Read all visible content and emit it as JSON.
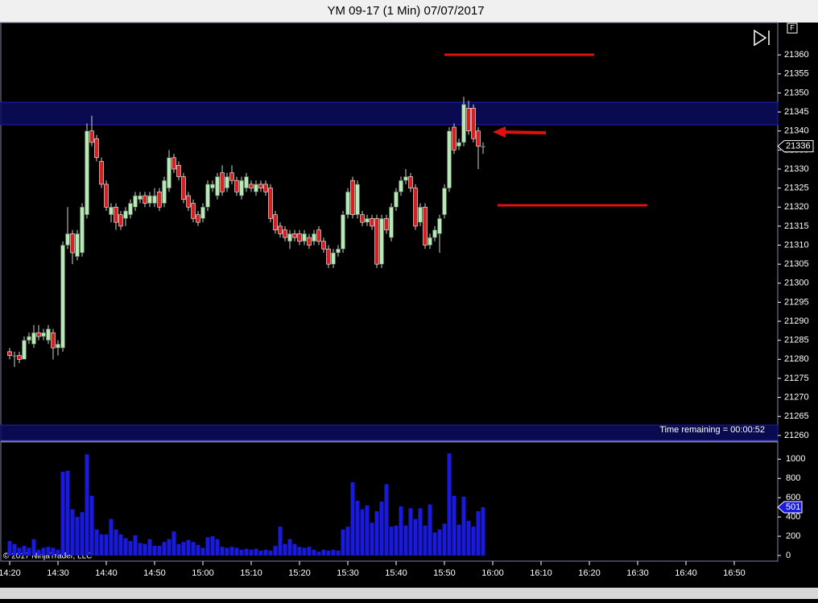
{
  "chart_data": {
    "type": "candlestick",
    "title": "YM 09-17 (1 Min)  07/07/2017",
    "status": "Time remaining = 00:00:52",
    "copyright": "© 2017 NinjaTrader, LLC",
    "flag": "F",
    "x": [
      "14:20",
      "14:21",
      "14:22",
      "14:23",
      "14:24",
      "14:25",
      "14:26",
      "14:27",
      "14:28",
      "14:29",
      "14:30",
      "14:31",
      "14:32",
      "14:33",
      "14:34",
      "14:35",
      "14:36",
      "14:37",
      "14:38",
      "14:39",
      "14:40",
      "14:41",
      "14:42",
      "14:43",
      "14:44",
      "14:45",
      "14:46",
      "14:47",
      "14:48",
      "14:49",
      "14:50",
      "14:51",
      "14:52",
      "14:53",
      "14:54",
      "14:55",
      "14:56",
      "14:57",
      "14:58",
      "14:59",
      "15:00",
      "15:01",
      "15:02",
      "15:03",
      "15:04",
      "15:05",
      "15:06",
      "15:07",
      "15:08",
      "15:09",
      "15:10",
      "15:11",
      "15:12",
      "15:13",
      "15:14",
      "15:15",
      "15:16",
      "15:17",
      "15:18",
      "15:19",
      "15:20",
      "15:21",
      "15:22",
      "15:23",
      "15:24",
      "15:25",
      "15:26",
      "15:27",
      "15:28",
      "15:29",
      "15:30",
      "15:31",
      "15:32",
      "15:33",
      "15:34",
      "15:35",
      "15:36",
      "15:37",
      "15:38",
      "15:39",
      "15:40",
      "15:41",
      "15:42",
      "15:43",
      "15:44",
      "15:45",
      "15:46",
      "15:47",
      "15:48",
      "15:49",
      "15:50",
      "15:51",
      "15:52",
      "15:53",
      "15:54",
      "15:55",
      "15:56",
      "15:57",
      "15:58"
    ],
    "open": [
      21282,
      21281,
      21281,
      21280,
      21285,
      21284,
      21287,
      21286,
      21285,
      21287,
      21283,
      21283,
      21310,
      21313,
      21307,
      21308,
      21318,
      21340,
      21338,
      21332,
      21326,
      21318,
      21320,
      21318,
      21317,
      21318,
      21320,
      21322,
      21323,
      21321,
      21321,
      21324,
      21321,
      21325,
      21333,
      21331,
      21328,
      21323,
      21321,
      21318,
      21317,
      21320,
      21325,
      21323,
      21329,
      21325,
      21329,
      21327,
      21323,
      21325,
      21326,
      21324,
      21326,
      21326,
      21325,
      21318,
      21315,
      21314,
      21311,
      21313,
      21313,
      21311,
      21312,
      21311,
      21314,
      21311,
      21309,
      21305,
      21308,
      21309,
      21318,
      21327,
      21318,
      21318,
      21316,
      21317,
      21317,
      21305,
      21317,
      21312,
      21320,
      21324,
      21327,
      21328,
      21325,
      21316,
      21320,
      21310,
      21312,
      21313,
      21318,
      21325,
      21341,
      21336,
      21337,
      21346,
      21346,
      21340,
      21336
    ],
    "high": [
      21283,
      21282,
      21282,
      21286,
      21287,
      21289,
      21289,
      21288,
      21289,
      21288,
      21285,
      21311,
      21320,
      21314,
      21314,
      21321,
      21342,
      21344,
      21339,
      21333,
      21327,
      21321,
      21321,
      21319,
      21320,
      21322,
      21324,
      21324,
      21324,
      21324,
      21325,
      21325,
      21328,
      21335,
      21334,
      21332,
      21329,
      21324,
      21322,
      21319,
      21321,
      21327,
      21327,
      21329,
      21331,
      21329,
      21331,
      21328,
      21328,
      21329,
      21327,
      21327,
      21327,
      21327,
      21326,
      21319,
      21316,
      21315,
      21314,
      21314,
      21314,
      21314,
      21313,
      21314,
      21315,
      21312,
      21310,
      21309,
      21310,
      21319,
      21325,
      21328,
      21327,
      21319,
      21318,
      21318,
      21318,
      21318,
      21318,
      21321,
      21325,
      21328,
      21330,
      21329,
      21326,
      21321,
      21321,
      21313,
      21315,
      21318,
      21326,
      21341,
      21342,
      21338,
      21349,
      21348,
      21347,
      21341,
      21337
    ],
    "low": [
      21280,
      21278,
      21279,
      21280,
      21284,
      21283,
      21285,
      21285,
      21284,
      21280,
      21281,
      21282,
      21309,
      21305,
      21306,
      21307,
      21317,
      21336,
      21332,
      21325,
      21319,
      21316,
      21314,
      21314,
      21315,
      21317,
      21319,
      21321,
      21320,
      21320,
      21320,
      21319,
      21320,
      21324,
      21329,
      21327,
      21321,
      21319,
      21316,
      21315,
      21316,
      21319,
      21324,
      21322,
      21323,
      21324,
      21326,
      21323,
      21322,
      21324,
      21324,
      21323,
      21324,
      21323,
      21316,
      21313,
      21312,
      21311,
      21309,
      21311,
      21310,
      21310,
      21309,
      21310,
      21310,
      21308,
      21304,
      21304,
      21307,
      21308,
      21317,
      21317,
      21317,
      21315,
      21315,
      21314,
      21304,
      21304,
      21313,
      21311,
      21319,
      21323,
      21326,
      21324,
      21314,
      21315,
      21309,
      21309,
      21311,
      21308,
      21317,
      21324,
      21334,
      21335,
      21336,
      21339,
      21337,
      21330,
      21334
    ],
    "close": [
      21281,
      21281,
      21280,
      21285,
      21286,
      21287,
      21286,
      21287,
      21288,
      21283,
      21284,
      21310,
      21313,
      21308,
      21313,
      21320,
      21340,
      21337,
      21333,
      21326,
      21320,
      21320,
      21316,
      21315,
      21319,
      21321,
      21323,
      21323,
      21321,
      21323,
      21323,
      21320,
      21327,
      21333,
      21330,
      21328,
      21322,
      21320,
      21317,
      21316,
      21320,
      21326,
      21326,
      21328,
      21324,
      21328,
      21327,
      21324,
      21327,
      21328,
      21325,
      21326,
      21325,
      21324,
      21317,
      21314,
      21313,
      21312,
      21313,
      21312,
      21311,
      21313,
      21310,
      21313,
      21311,
      21309,
      21305,
      21308,
      21309,
      21318,
      21324,
      21318,
      21326,
      21316,
      21317,
      21315,
      21305,
      21317,
      21314,
      21320,
      21324,
      21327,
      21328,
      21325,
      21315,
      21320,
      21310,
      21312,
      21314,
      21317,
      21325,
      21340,
      21335,
      21337,
      21347,
      21340,
      21338,
      21336,
      21336
    ],
    "volume": [
      150,
      120,
      80,
      100,
      80,
      170,
      60,
      80,
      90,
      80,
      60,
      870,
      880,
      480,
      400,
      450,
      1050,
      620,
      270,
      220,
      220,
      380,
      270,
      220,
      180,
      150,
      210,
      130,
      120,
      170,
      100,
      100,
      140,
      170,
      250,
      120,
      140,
      160,
      140,
      110,
      80,
      190,
      200,
      170,
      90,
      80,
      90,
      80,
      60,
      70,
      60,
      70,
      50,
      60,
      50,
      100,
      300,
      120,
      170,
      120,
      90,
      80,
      90,
      60,
      40,
      60,
      50,
      60,
      50,
      270,
      300,
      760,
      570,
      480,
      520,
      340,
      460,
      560,
      740,
      300,
      310,
      510,
      310,
      490,
      380,
      490,
      310,
      530,
      240,
      270,
      330,
      1060,
      620,
      320,
      610,
      360,
      300,
      460,
      501
    ],
    "up_color": "#b8e8b8",
    "down_color": "#d42020",
    "volume_color": "#1a1adc",
    "xlim": [
      "14:18",
      "16:59"
    ],
    "xticks": [
      "14:20",
      "14:30",
      "14:40",
      "14:50",
      "15:00",
      "15:10",
      "15:20",
      "15:30",
      "15:40",
      "15:50",
      "16:00",
      "16:10",
      "16:20",
      "16:30",
      "16:40",
      "16:50"
    ],
    "ylim": [
      21258.7,
      21368.5
    ],
    "yticks": [
      21260,
      21265,
      21270,
      21275,
      21280,
      21285,
      21290,
      21295,
      21300,
      21305,
      21310,
      21315,
      21320,
      21325,
      21330,
      21335,
      21340,
      21345,
      21350,
      21355,
      21360
    ],
    "volume_ylim": [
      0,
      1170
    ],
    "volume_yticks": [
      0,
      200,
      400,
      600,
      800,
      1000
    ]
  }
}
